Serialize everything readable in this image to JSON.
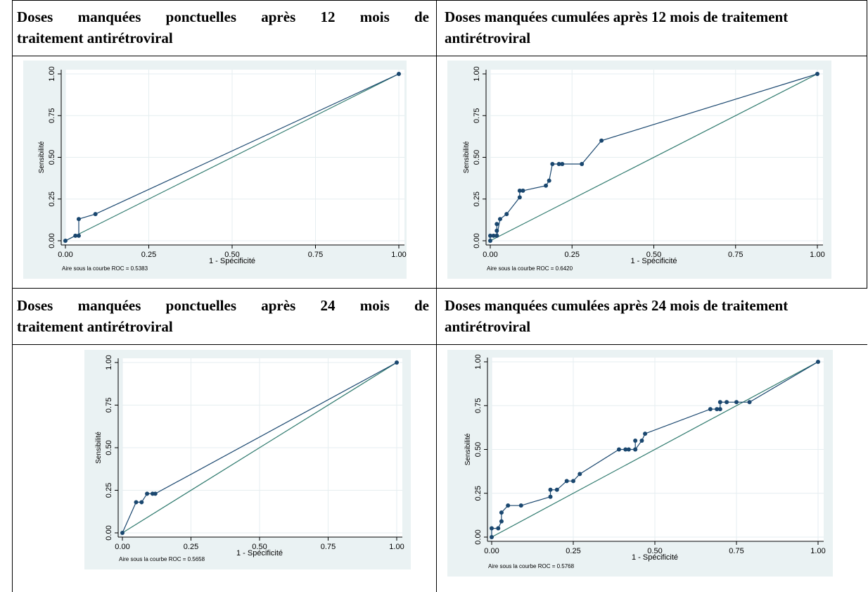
{
  "colors": {
    "bg": "#eaf2f3",
    "series": "#1a476f",
    "reference": "#2f7a6e",
    "grid": "#ffffff"
  },
  "cells": [
    {
      "title_line1": "Doses manquées ponctuelles après 12 mois de",
      "title_line2": "traitement antirétroviral"
    },
    {
      "title_line1": "Doses manquées cumulées après 12 mois de traitement",
      "title_line2": "antirétroviral"
    },
    {
      "title_line1": "Doses manquées ponctuelles après 24 mois de",
      "title_line2": "traitement antirétroviral"
    },
    {
      "title_line1": "Doses manquées cumulées après 24 mois de traitement",
      "title_line2": "antirétroviral"
    }
  ],
  "chart_data": [
    {
      "type": "line",
      "xlabel": "1 - Spécificité",
      "ylabel": "Sensibilité",
      "xlim": [
        0,
        1
      ],
      "ylim": [
        0,
        1
      ],
      "xticks": [
        "0.00",
        "0.25",
        "0.50",
        "0.75",
        "1.00"
      ],
      "yticks": [
        "0.00",
        "0.25",
        "0.50",
        "0.75",
        "1.00"
      ],
      "note": "Aire sous la courbe ROC = 0.5383",
      "reference_line": [
        [
          0,
          0
        ],
        [
          1,
          1
        ]
      ],
      "series": [
        {
          "x": [
            0.0,
            0.03,
            0.04,
            0.04,
            0.09,
            1.0
          ],
          "y": [
            0.0,
            0.03,
            0.03,
            0.13,
            0.16,
            1.0
          ]
        }
      ]
    },
    {
      "type": "line",
      "xlabel": "1 - Spécificité",
      "ylabel": "Sensibilité",
      "xlim": [
        0,
        1
      ],
      "ylim": [
        0,
        1
      ],
      "xticks": [
        "0.00",
        "0.25",
        "0.50",
        "0.75",
        "1.00"
      ],
      "yticks": [
        "0.00",
        "0.25",
        "0.50",
        "0.75",
        "1.00"
      ],
      "note": "Aire sous la courbe ROC = 0.6420",
      "reference_line": [
        [
          0,
          0
        ],
        [
          1,
          1
        ]
      ],
      "series": [
        {
          "x": [
            0.0,
            0.0,
            0.01,
            0.02,
            0.02,
            0.02,
            0.02,
            0.03,
            0.05,
            0.09,
            0.09,
            0.1,
            0.17,
            0.18,
            0.19,
            0.21,
            0.22,
            0.28,
            0.34,
            1.0
          ],
          "y": [
            0.0,
            0.03,
            0.03,
            0.03,
            0.06,
            0.1,
            0.03,
            0.13,
            0.16,
            0.26,
            0.3,
            0.3,
            0.33,
            0.36,
            0.46,
            0.46,
            0.46,
            0.46,
            0.6,
            1.0
          ]
        }
      ]
    },
    {
      "type": "line",
      "xlabel": "1 - Spécificité",
      "ylabel": "Sensibilité",
      "xlim": [
        0,
        1
      ],
      "ylim": [
        0,
        1
      ],
      "xticks": [
        "0.00",
        "0.25",
        "0.50",
        "0.75",
        "1.00"
      ],
      "yticks": [
        "0.00",
        "0.25",
        "0.50",
        "0.75",
        "1.00"
      ],
      "note": "Aire sous la courbe ROC = 0.5658",
      "reference_line": [
        [
          0,
          0
        ],
        [
          1,
          1
        ]
      ],
      "series": [
        {
          "x": [
            0.0,
            0.05,
            0.07,
            0.09,
            0.11,
            0.12,
            1.0
          ],
          "y": [
            0.0,
            0.18,
            0.18,
            0.23,
            0.23,
            0.23,
            1.0
          ]
        }
      ]
    },
    {
      "type": "line",
      "xlabel": "1 - Spécificité",
      "ylabel": "Sensibilité",
      "xlim": [
        0,
        1
      ],
      "ylim": [
        0,
        1
      ],
      "xticks": [
        "0.00",
        "0.25",
        "0.50",
        "0.75",
        "1.00"
      ],
      "yticks": [
        "0.00",
        "0.25",
        "0.50",
        "0.75",
        "1.00"
      ],
      "note": "Aire sous la courbe ROC = 0.5768",
      "reference_line": [
        [
          0,
          0
        ],
        [
          1,
          1
        ]
      ],
      "series": [
        {
          "x": [
            0.0,
            0.0,
            0.02,
            0.03,
            0.03,
            0.05,
            0.09,
            0.18,
            0.18,
            0.2,
            0.23,
            0.25,
            0.27,
            0.39,
            0.41,
            0.42,
            0.44,
            0.44,
            0.44,
            0.46,
            0.47,
            0.67,
            0.69,
            0.7,
            0.7,
            0.72,
            0.75,
            0.79,
            1.0
          ],
          "y": [
            0.0,
            0.05,
            0.05,
            0.09,
            0.14,
            0.18,
            0.18,
            0.23,
            0.27,
            0.27,
            0.32,
            0.32,
            0.36,
            0.5,
            0.5,
            0.5,
            0.5,
            0.55,
            0.5,
            0.55,
            0.59,
            0.73,
            0.73,
            0.73,
            0.77,
            0.77,
            0.77,
            0.77,
            1.0
          ]
        }
      ]
    }
  ]
}
